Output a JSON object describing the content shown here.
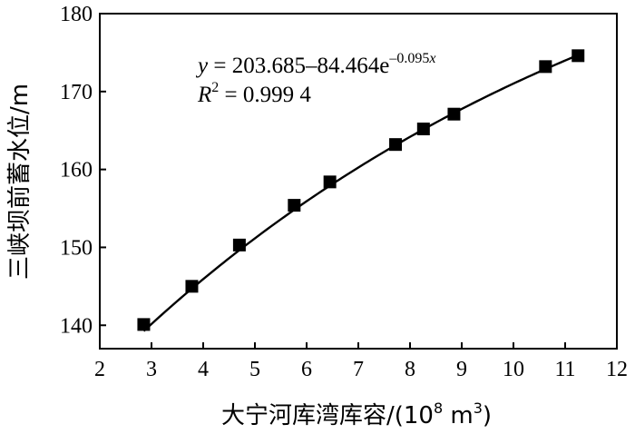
{
  "chart_data": {
    "type": "scatter",
    "xlabel": "大宁河库湾库容/(10",
    "xlabel_exp": "8",
    "xlabel_unit": " m",
    "xlabel_unit_exp": "3",
    "xlabel_close": ")",
    "ylabel": "三峡坝前蓄水位/m",
    "xlim": [
      2,
      12
    ],
    "ylim": [
      137,
      180
    ],
    "x_ticks": [
      "2",
      "3",
      "4",
      "5",
      "6",
      "7",
      "8",
      "9",
      "10",
      "11",
      "12"
    ],
    "y_ticks": [
      "140",
      "150",
      "160",
      "170",
      "180"
    ],
    "points": [
      {
        "x": 2.85,
        "y": 140.1
      },
      {
        "x": 3.78,
        "y": 145.0
      },
      {
        "x": 4.7,
        "y": 150.3
      },
      {
        "x": 5.76,
        "y": 155.4
      },
      {
        "x": 6.45,
        "y": 158.4
      },
      {
        "x": 7.72,
        "y": 163.2
      },
      {
        "x": 8.26,
        "y": 165.2
      },
      {
        "x": 8.85,
        "y": 167.1
      },
      {
        "x": 10.62,
        "y": 173.2
      },
      {
        "x": 11.25,
        "y": 174.6
      }
    ],
    "fit": {
      "a": 203.685,
      "b": 84.464,
      "c": 0.095,
      "x_range": [
        2.85,
        11.25
      ]
    },
    "annotation": {
      "eq_y": "y",
      "eq_mid": " = 203.685–84.464e",
      "eq_exp": "–0.095",
      "eq_exp_x": "x",
      "r2_r": "R",
      "r2_sup": "2",
      "r2_val": " = 0.999 4"
    },
    "grid": false,
    "legend": "none"
  }
}
